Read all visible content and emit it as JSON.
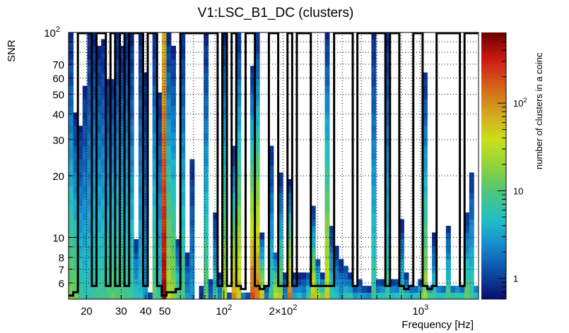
{
  "chart_data": {
    "type": "heatmap",
    "title": "V1:LSC_B1_DC (clusters)",
    "xlabel": "Frequency [Hz]",
    "ylabel": "SNR",
    "zlabel": "number of clusters in a coinc",
    "xscale": "log",
    "yscale": "log",
    "zscale": "log",
    "xlim": [
      16.2,
      1975
    ],
    "ylim": [
      5,
      100
    ],
    "zlim": [
      0.58,
      640
    ],
    "grid": true,
    "x_bins": 88,
    "y_bins": 40,
    "x_ticks": [
      {
        "value": 20,
        "label": "20"
      },
      {
        "value": 30,
        "label": "30"
      },
      {
        "value": 40,
        "label": "40"
      },
      {
        "value": 50,
        "label": "50"
      },
      {
        "value": 100,
        "label": "10",
        "sup": "2"
      },
      {
        "value": 200,
        "label": "2×10",
        "sup": "2"
      },
      {
        "value": 1000,
        "label": "10",
        "sup": "3"
      }
    ],
    "y_ticks": [
      {
        "value": 6,
        "label": "6"
      },
      {
        "value": 7,
        "label": "7"
      },
      {
        "value": 8,
        "label": "8"
      },
      {
        "value": 10,
        "label": "10"
      },
      {
        "value": 20,
        "label": "20"
      },
      {
        "value": 30,
        "label": "30"
      },
      {
        "value": 40,
        "label": "40"
      },
      {
        "value": 50,
        "label": "50"
      },
      {
        "value": 60,
        "label": "60"
      },
      {
        "value": 70,
        "label": "70"
      },
      {
        "value": 100,
        "label": "10",
        "sup": "2"
      }
    ],
    "z_ticks": [
      {
        "value": 1,
        "label": "1"
      },
      {
        "value": 10,
        "label": "10"
      },
      {
        "value": 100,
        "label": "10",
        "sup": "2"
      }
    ],
    "palette": [
      "#0b0c6c",
      "#0d4aa3",
      "#1688cc",
      "#22bfc8",
      "#4cc57c",
      "#8fd33c",
      "#c8e019",
      "#d4a51e",
      "#d5621a",
      "#cc1a14",
      "#6a0000"
    ],
    "columns_note": "per frequency bin: [max SNR reached, count in lowest SNR bin, optional count at max SNR]",
    "columns": [
      [
        100,
        15
      ],
      [
        40,
        15
      ],
      [
        34,
        8
      ],
      [
        55,
        6
      ],
      [
        100,
        6
      ],
      [
        100,
        8
      ],
      [
        85,
        8
      ],
      [
        90,
        8
      ],
      [
        60,
        10
      ],
      [
        60,
        12
      ],
      [
        100,
        10
      ],
      [
        85,
        10
      ],
      [
        100,
        8
      ],
      [
        100,
        8
      ],
      [
        10,
        6
      ],
      [
        100,
        5
      ],
      [
        65,
        3
      ],
      [
        5.5,
        1
      ],
      [
        100,
        12
      ],
      [
        50,
        6
      ],
      [
        100,
        450,
        60
      ],
      [
        100,
        30
      ],
      [
        85,
        20
      ],
      [
        10,
        12
      ],
      [
        100,
        10
      ],
      [
        8.5,
        3
      ],
      [
        24,
        3
      ],
      [
        0,
        0
      ],
      [
        6,
        1
      ],
      [
        100,
        12
      ],
      [
        6.2,
        2
      ],
      [
        13,
        8
      ],
      [
        6.5,
        3
      ],
      [
        100,
        30
      ],
      [
        5.5,
        2
      ],
      [
        27,
        100
      ],
      [
        100,
        60
      ],
      [
        5.5,
        3
      ],
      [
        5.5,
        2
      ],
      [
        67,
        200
      ],
      [
        100,
        150
      ],
      [
        10.6,
        60
      ],
      [
        6,
        3
      ],
      [
        27,
        8
      ],
      [
        8.7,
        50
      ],
      [
        21,
        20
      ],
      [
        6.6,
        3
      ],
      [
        19,
        150
      ],
      [
        6.5,
        5
      ],
      [
        6.5,
        5
      ],
      [
        6.5,
        4
      ],
      [
        7,
        10
      ],
      [
        14,
        80
      ],
      [
        8,
        30
      ],
      [
        6.5,
        25
      ],
      [
        100,
        50
      ],
      [
        11.5,
        8
      ],
      [
        9,
        5
      ],
      [
        7.8,
        4
      ],
      [
        7.5,
        6
      ],
      [
        6.5,
        10
      ],
      [
        5.8,
        4
      ],
      [
        6.2,
        5
      ],
      [
        5.7,
        4
      ],
      [
        5.7,
        4
      ],
      [
        100,
        8
      ],
      [
        6.2,
        8
      ],
      [
        6.2,
        8
      ],
      [
        100,
        8
      ],
      [
        6.2,
        6
      ],
      [
        6.2,
        8
      ],
      [
        12,
        8
      ],
      [
        6.5,
        8
      ],
      [
        6,
        6
      ],
      [
        6,
        8
      ],
      [
        6.2,
        12
      ],
      [
        64,
        25
      ],
      [
        6,
        15
      ],
      [
        10.2,
        8
      ],
      [
        6,
        8
      ],
      [
        6,
        8
      ],
      [
        11.7,
        10
      ],
      [
        6,
        10
      ],
      [
        6,
        12
      ],
      [
        6,
        8
      ],
      [
        13,
        15
      ],
      [
        21,
        8
      ],
      [
        6,
        8
      ]
    ],
    "contour_note": "black outline histogram, SNR level per frequency bin",
    "contour": [
      5.2,
      5.4,
      100,
      100,
      100,
      5.8,
      100,
      100,
      5.8,
      100,
      5.8,
      100,
      5.8,
      100,
      100,
      100,
      5.8,
      100,
      100,
      5.8,
      5.2,
      5.4,
      5.4,
      5.6,
      100,
      100,
      100,
      100,
      100,
      100,
      100,
      100,
      5.8,
      100,
      5.8,
      100,
      5.8,
      5.6,
      100,
      100,
      5.8,
      5.6,
      5.8,
      100,
      100,
      5.8,
      5.8,
      100,
      5.8,
      100,
      100,
      100,
      5.8,
      5.8,
      5.8,
      5.8,
      5.8,
      100,
      100,
      100,
      100,
      5.8,
      100,
      100,
      100,
      100,
      100,
      100,
      5.8,
      100,
      100,
      5.8,
      5.6,
      5.8,
      100,
      100,
      5.8,
      5.6,
      5.8,
      100,
      100,
      100,
      100,
      100,
      5.8,
      100,
      100,
      100
    ]
  }
}
